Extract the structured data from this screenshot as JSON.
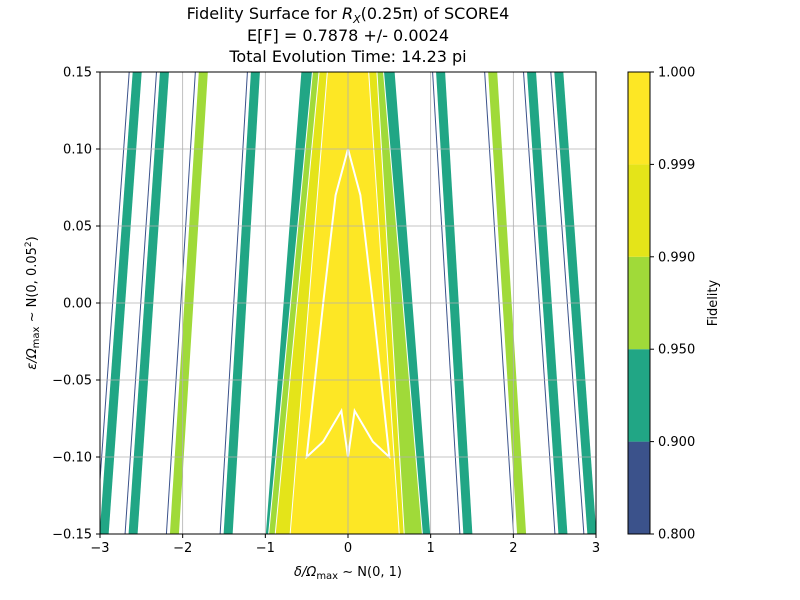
{
  "chart_data": {
    "type": "heatmap",
    "title_lines": [
      "Fidelity Surface for",
      "of SCORE4",
      "E[F] = 0.7878 +/- 0.0024",
      "Total Evolution Time: 14.23 pi"
    ],
    "title_math": {
      "symbol": "R",
      "subscript": "X",
      "argument": "(0.25π)"
    },
    "xlabel": {
      "prefix": "δ/Ω",
      "subscript": "max",
      "suffix": " ∼ N(0, 1)"
    },
    "ylabel": {
      "prefix": "ε/Ω",
      "subscript": "max",
      "suffix": " ∼ N(0, 0.05",
      "superscript": "2",
      "close": ")"
    },
    "xlim": [
      -3,
      3
    ],
    "ylim": [
      -0.15,
      0.15
    ],
    "xticks": [
      -3,
      -2,
      -1,
      0,
      1,
      2,
      3
    ],
    "xtick_labels": [
      "−3",
      "−2",
      "−1",
      "0",
      "1",
      "2",
      "3"
    ],
    "yticks": [
      -0.15,
      -0.1,
      -0.05,
      0.0,
      0.05,
      0.1,
      0.15
    ],
    "ytick_labels": [
      "−0.15",
      "−0.10",
      "−0.05",
      "0.00",
      "0.05",
      "0.10",
      "0.15"
    ],
    "grid": true,
    "colorbar": {
      "label": "Fidelity",
      "levels": [
        0.8,
        0.9,
        0.95,
        0.99,
        0.999,
        1.0
      ],
      "level_labels": [
        "0.800",
        "0.900",
        "0.950",
        "0.990",
        "0.999",
        "1.000"
      ],
      "colors": [
        "#3b528b",
        "#21a685",
        "#a0da39",
        "#e4e419",
        "#fde725"
      ]
    },
    "regions": [
      {
        "name": "central-band-0.90",
        "level": 0.9,
        "top": [
          -0.57,
          0.57
        ],
        "bottom": [
          -1.0,
          1.0
        ]
      },
      {
        "name": "central-band-0.95",
        "level": 0.95,
        "top": [
          -0.43,
          0.43
        ],
        "bottom": [
          -0.96,
          0.9
        ]
      },
      {
        "name": "central-band-0.99",
        "level": 0.99,
        "top": [
          -0.35,
          0.35
        ],
        "bottom": [
          -0.88,
          0.68
        ]
      },
      {
        "name": "central-band-0.999",
        "level": 0.999,
        "top": [
          -0.25,
          0.25
        ],
        "bottom": [
          -0.7,
          0.62
        ]
      }
    ],
    "contour_lines": [
      {
        "name": "inner-contour-1.000",
        "color": "#ffffff",
        "points": [
          [
            0,
            0.1
          ],
          [
            -0.15,
            0.07
          ],
          [
            -0.3,
            0.0
          ],
          [
            -0.42,
            -0.06
          ],
          [
            -0.5,
            -0.1
          ],
          [
            -0.3,
            -0.09
          ],
          [
            -0.08,
            -0.07
          ],
          [
            0,
            -0.1
          ],
          [
            0.08,
            -0.07
          ],
          [
            0.3,
            -0.09
          ],
          [
            0.5,
            -0.1
          ],
          [
            0.42,
            -0.06
          ],
          [
            0.3,
            0.0
          ],
          [
            0.15,
            0.07
          ],
          [
            0,
            0.1
          ]
        ]
      }
    ],
    "side_stripes": [
      {
        "side": "left",
        "x_top": -1.12,
        "x_bottom": -1.45,
        "level": 0.9
      },
      {
        "side": "left",
        "x_top": -1.75,
        "x_bottom": -2.1,
        "level": 0.95
      },
      {
        "side": "left",
        "x_top": -2.22,
        "x_bottom": -2.6,
        "level": 0.9
      },
      {
        "side": "left",
        "x_top": -2.55,
        "x_bottom": -2.95,
        "level": 0.9
      },
      {
        "side": "right",
        "x_top": 1.12,
        "x_bottom": 1.45,
        "level": 0.9
      },
      {
        "side": "right",
        "x_top": 1.75,
        "x_bottom": 2.1,
        "level": 0.95
      },
      {
        "side": "right",
        "x_top": 2.22,
        "x_bottom": 2.6,
        "level": 0.9
      },
      {
        "side": "right",
        "x_top": 2.55,
        "x_bottom": 2.95,
        "level": 0.9
      }
    ]
  }
}
